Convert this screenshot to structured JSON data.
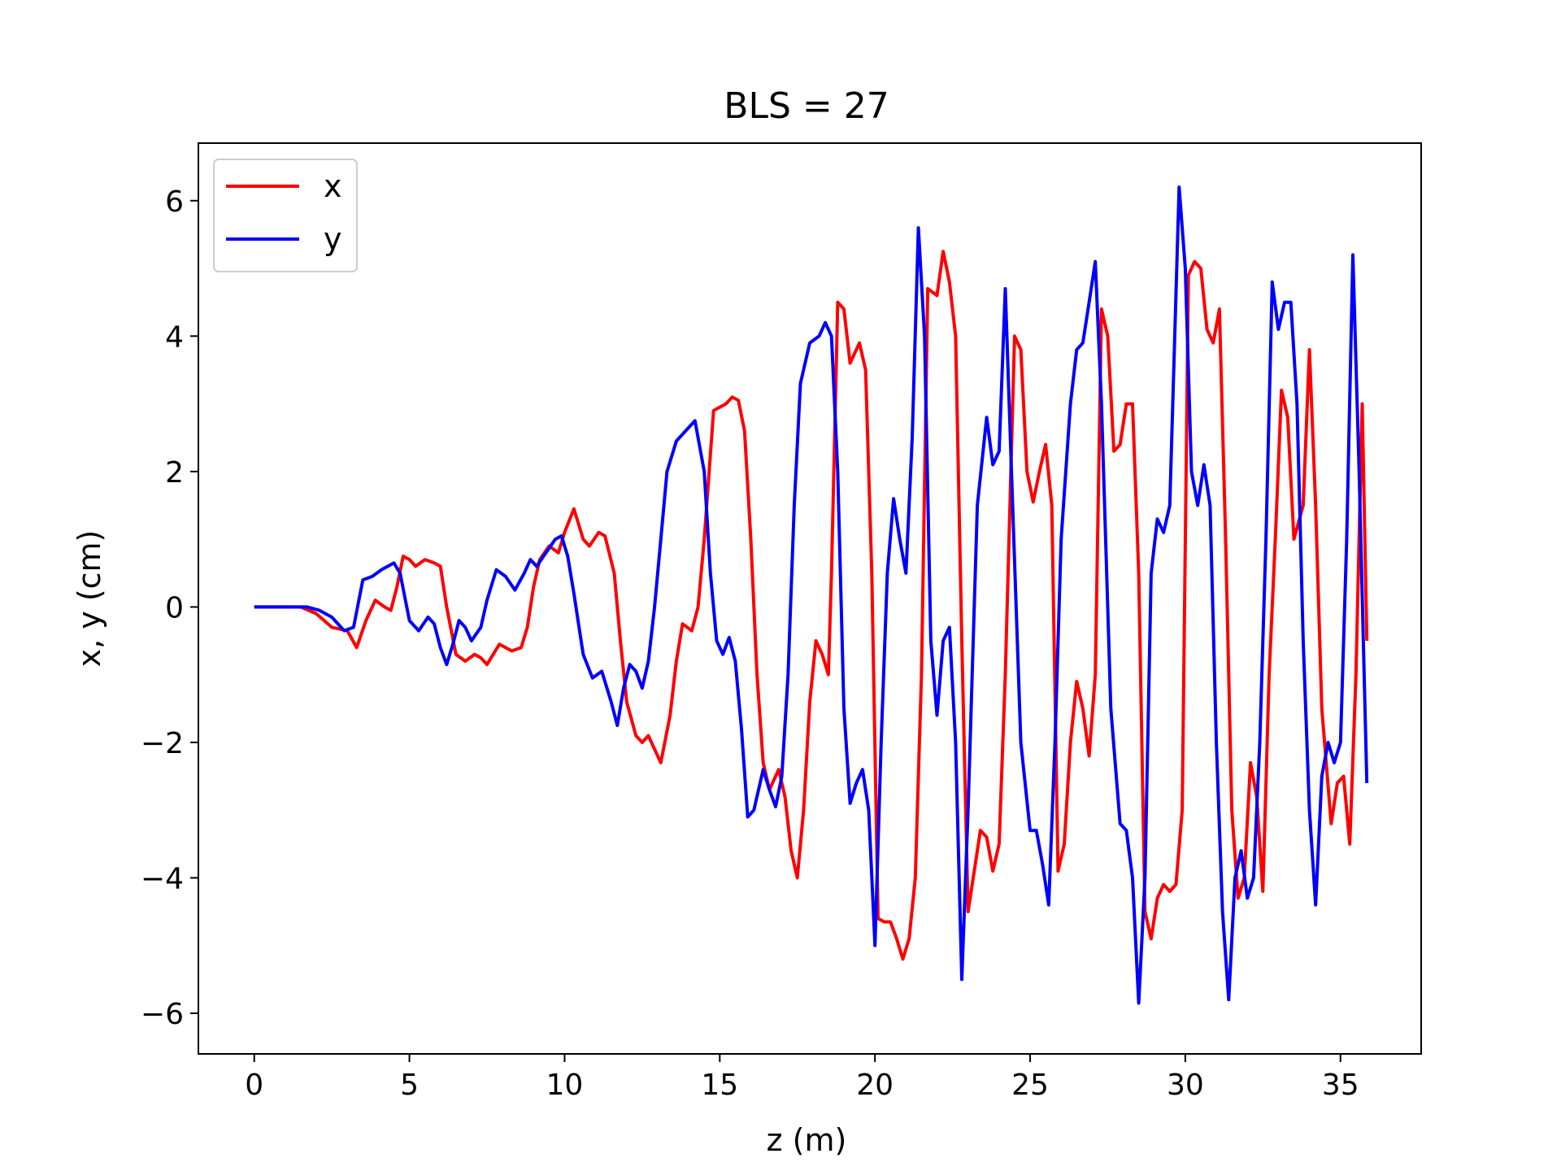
{
  "chart_data": {
    "type": "line",
    "title": "BLS = 27",
    "xlabel": "z (m)",
    "ylabel": "x, y (cm)",
    "xlim": [
      -1.8,
      37.6
    ],
    "ylim": [
      -6.6,
      6.85
    ],
    "xticks": [
      0,
      5,
      10,
      15,
      20,
      25,
      30,
      35
    ],
    "xtick_labels": [
      "0",
      "5",
      "10",
      "15",
      "20",
      "25",
      "30",
      "35"
    ],
    "yticks": [
      -6,
      -4,
      -2,
      0,
      2,
      4,
      6
    ],
    "ytick_labels": [
      "−6",
      "−4",
      "−2",
      "0",
      "2",
      "4",
      "6"
    ],
    "grid": false,
    "legend_position": "upper-left",
    "series": [
      {
        "name": "x",
        "color": "#ff0000",
        "points": [
          [
            0,
            0
          ],
          [
            1.5,
            0
          ],
          [
            2.0,
            -0.1
          ],
          [
            2.5,
            -0.3
          ],
          [
            3.0,
            -0.35
          ],
          [
            3.3,
            -0.6
          ],
          [
            3.6,
            -0.2
          ],
          [
            3.9,
            0.1
          ],
          [
            4.2,
            0.0
          ],
          [
            4.4,
            -0.05
          ],
          [
            4.6,
            0.3
          ],
          [
            4.8,
            0.75
          ],
          [
            5.0,
            0.7
          ],
          [
            5.2,
            0.6
          ],
          [
            5.5,
            0.7
          ],
          [
            5.8,
            0.65
          ],
          [
            6.0,
            0.6
          ],
          [
            6.2,
            0.0
          ],
          [
            6.5,
            -0.7
          ],
          [
            6.8,
            -0.8
          ],
          [
            7.1,
            -0.7
          ],
          [
            7.3,
            -0.75
          ],
          [
            7.5,
            -0.85
          ],
          [
            7.7,
            -0.7
          ],
          [
            7.9,
            -0.55
          ],
          [
            8.1,
            -0.6
          ],
          [
            8.3,
            -0.65
          ],
          [
            8.6,
            -0.6
          ],
          [
            8.8,
            -0.3
          ],
          [
            9.0,
            0.3
          ],
          [
            9.2,
            0.7
          ],
          [
            9.5,
            0.9
          ],
          [
            9.8,
            0.8
          ],
          [
            10.0,
            1.1
          ],
          [
            10.3,
            1.45
          ],
          [
            10.6,
            1.0
          ],
          [
            10.8,
            0.9
          ],
          [
            11.1,
            1.1
          ],
          [
            11.3,
            1.05
          ],
          [
            11.6,
            0.5
          ],
          [
            11.8,
            -0.5
          ],
          [
            12.0,
            -1.4
          ],
          [
            12.3,
            -1.9
          ],
          [
            12.5,
            -2.0
          ],
          [
            12.7,
            -1.9
          ],
          [
            12.9,
            -2.1
          ],
          [
            13.1,
            -2.3
          ],
          [
            13.4,
            -1.6
          ],
          [
            13.6,
            -0.8
          ],
          [
            13.8,
            -0.25
          ],
          [
            14.1,
            -0.35
          ],
          [
            14.3,
            0.0
          ],
          [
            14.5,
            1.0
          ],
          [
            14.8,
            2.9
          ],
          [
            15.0,
            2.95
          ],
          [
            15.2,
            3.0
          ],
          [
            15.4,
            3.1
          ],
          [
            15.6,
            3.05
          ],
          [
            15.8,
            2.6
          ],
          [
            16.0,
            1.0
          ],
          [
            16.2,
            -1.0
          ],
          [
            16.4,
            -2.3
          ],
          [
            16.6,
            -2.7
          ],
          [
            16.9,
            -2.4
          ],
          [
            17.1,
            -2.8
          ],
          [
            17.3,
            -3.6
          ],
          [
            17.5,
            -4.0
          ],
          [
            17.7,
            -3.0
          ],
          [
            17.9,
            -1.4
          ],
          [
            18.1,
            -0.5
          ],
          [
            18.3,
            -0.7
          ],
          [
            18.5,
            -1.0
          ],
          [
            18.6,
            0.5
          ],
          [
            18.8,
            4.5
          ],
          [
            19.0,
            4.4
          ],
          [
            19.2,
            3.6
          ],
          [
            19.5,
            3.9
          ],
          [
            19.7,
            3.5
          ],
          [
            19.9,
            0.5
          ],
          [
            20.1,
            -4.6
          ],
          [
            20.3,
            -4.65
          ],
          [
            20.5,
            -4.65
          ],
          [
            20.7,
            -4.9
          ],
          [
            20.9,
            -5.2
          ],
          [
            21.1,
            -4.9
          ],
          [
            21.3,
            -4.0
          ],
          [
            21.5,
            -1.0
          ],
          [
            21.7,
            4.7
          ],
          [
            22.0,
            4.6
          ],
          [
            22.2,
            5.25
          ],
          [
            22.4,
            4.8
          ],
          [
            22.6,
            4.0
          ],
          [
            22.8,
            -0.5
          ],
          [
            23.0,
            -4.5
          ],
          [
            23.2,
            -3.9
          ],
          [
            23.4,
            -3.3
          ],
          [
            23.6,
            -3.4
          ],
          [
            23.8,
            -3.9
          ],
          [
            24.0,
            -3.5
          ],
          [
            24.2,
            -1.0
          ],
          [
            24.5,
            4.0
          ],
          [
            24.7,
            3.8
          ],
          [
            24.9,
            2.0
          ],
          [
            25.1,
            1.55
          ],
          [
            25.3,
            2.0
          ],
          [
            25.5,
            2.4
          ],
          [
            25.7,
            1.5
          ],
          [
            25.9,
            -3.9
          ],
          [
            26.1,
            -3.5
          ],
          [
            26.3,
            -2.0
          ],
          [
            26.5,
            -1.1
          ],
          [
            26.7,
            -1.5
          ],
          [
            26.9,
            -2.2
          ],
          [
            27.1,
            -1.0
          ],
          [
            27.3,
            4.4
          ],
          [
            27.5,
            4.0
          ],
          [
            27.7,
            2.3
          ],
          [
            27.9,
            2.4
          ],
          [
            28.1,
            3.0
          ],
          [
            28.3,
            3.0
          ],
          [
            28.5,
            0.5
          ],
          [
            28.7,
            -4.5
          ],
          [
            28.9,
            -4.9
          ],
          [
            29.1,
            -4.3
          ],
          [
            29.3,
            -4.1
          ],
          [
            29.5,
            -4.2
          ],
          [
            29.7,
            -4.1
          ],
          [
            29.9,
            -3.0
          ],
          [
            30.1,
            4.9
          ],
          [
            30.3,
            5.1
          ],
          [
            30.5,
            5.0
          ],
          [
            30.7,
            4.1
          ],
          [
            30.9,
            3.9
          ],
          [
            31.1,
            4.4
          ],
          [
            31.3,
            1.0
          ],
          [
            31.5,
            -3.0
          ],
          [
            31.7,
            -4.3
          ],
          [
            31.9,
            -4.0
          ],
          [
            32.1,
            -2.3
          ],
          [
            32.3,
            -2.8
          ],
          [
            32.5,
            -4.2
          ],
          [
            32.7,
            -1.0
          ],
          [
            32.9,
            1.0
          ],
          [
            33.1,
            3.2
          ],
          [
            33.3,
            2.8
          ],
          [
            33.5,
            1.0
          ],
          [
            33.8,
            1.5
          ],
          [
            34.0,
            3.8
          ],
          [
            34.2,
            1.5
          ],
          [
            34.4,
            -1.5
          ],
          [
            34.7,
            -3.2
          ],
          [
            34.9,
            -2.6
          ],
          [
            35.1,
            -2.5
          ],
          [
            35.3,
            -3.5
          ],
          [
            35.5,
            -1.0
          ],
          [
            35.7,
            3.0
          ],
          [
            35.85,
            -0.5
          ]
        ]
      },
      {
        "name": "y",
        "color": "#0000ff",
        "points": [
          [
            0,
            0
          ],
          [
            1.7,
            0
          ],
          [
            2.1,
            -0.05
          ],
          [
            2.5,
            -0.15
          ],
          [
            2.9,
            -0.35
          ],
          [
            3.2,
            -0.3
          ],
          [
            3.5,
            0.4
          ],
          [
            3.8,
            0.45
          ],
          [
            4.1,
            0.55
          ],
          [
            4.5,
            0.65
          ],
          [
            4.7,
            0.5
          ],
          [
            5.0,
            -0.2
          ],
          [
            5.3,
            -0.35
          ],
          [
            5.6,
            -0.15
          ],
          [
            5.8,
            -0.25
          ],
          [
            6.0,
            -0.6
          ],
          [
            6.2,
            -0.85
          ],
          [
            6.4,
            -0.55
          ],
          [
            6.6,
            -0.2
          ],
          [
            6.8,
            -0.3
          ],
          [
            7.0,
            -0.5
          ],
          [
            7.3,
            -0.3
          ],
          [
            7.5,
            0.1
          ],
          [
            7.8,
            0.55
          ],
          [
            8.1,
            0.45
          ],
          [
            8.4,
            0.25
          ],
          [
            8.7,
            0.5
          ],
          [
            8.9,
            0.7
          ],
          [
            9.1,
            0.6
          ],
          [
            9.4,
            0.8
          ],
          [
            9.7,
            1.0
          ],
          [
            9.9,
            1.05
          ],
          [
            10.1,
            0.75
          ],
          [
            10.3,
            0.2
          ],
          [
            10.6,
            -0.7
          ],
          [
            10.9,
            -1.05
          ],
          [
            11.2,
            -0.95
          ],
          [
            11.5,
            -1.4
          ],
          [
            11.7,
            -1.75
          ],
          [
            11.9,
            -1.2
          ],
          [
            12.1,
            -0.85
          ],
          [
            12.3,
            -0.95
          ],
          [
            12.5,
            -1.2
          ],
          [
            12.7,
            -0.8
          ],
          [
            12.9,
            0.0
          ],
          [
            13.1,
            1.0
          ],
          [
            13.3,
            2.0
          ],
          [
            13.6,
            2.45
          ],
          [
            13.9,
            2.6
          ],
          [
            14.2,
            2.75
          ],
          [
            14.5,
            2.0
          ],
          [
            14.7,
            0.5
          ],
          [
            14.9,
            -0.5
          ],
          [
            15.1,
            -0.7
          ],
          [
            15.3,
            -0.45
          ],
          [
            15.5,
            -0.8
          ],
          [
            15.7,
            -1.8
          ],
          [
            15.9,
            -3.1
          ],
          [
            16.1,
            -3.0
          ],
          [
            16.4,
            -2.4
          ],
          [
            16.6,
            -2.7
          ],
          [
            16.8,
            -2.95
          ],
          [
            17.0,
            -2.5
          ],
          [
            17.2,
            -1.0
          ],
          [
            17.4,
            1.5
          ],
          [
            17.6,
            3.3
          ],
          [
            17.9,
            3.9
          ],
          [
            18.2,
            4.0
          ],
          [
            18.4,
            4.2
          ],
          [
            18.6,
            4.0
          ],
          [
            18.8,
            2.0
          ],
          [
            19.0,
            -1.5
          ],
          [
            19.2,
            -2.9
          ],
          [
            19.4,
            -2.6
          ],
          [
            19.6,
            -2.4
          ],
          [
            19.8,
            -3.0
          ],
          [
            20.0,
            -5.0
          ],
          [
            20.2,
            -2.0
          ],
          [
            20.4,
            0.5
          ],
          [
            20.6,
            1.6
          ],
          [
            20.8,
            1.0
          ],
          [
            21.0,
            0.5
          ],
          [
            21.2,
            2.5
          ],
          [
            21.4,
            5.6
          ],
          [
            21.6,
            4.0
          ],
          [
            21.8,
            -0.5
          ],
          [
            22.0,
            -1.6
          ],
          [
            22.2,
            -0.5
          ],
          [
            22.4,
            -0.3
          ],
          [
            22.6,
            -2.0
          ],
          [
            22.8,
            -5.5
          ],
          [
            23.0,
            -3.0
          ],
          [
            23.3,
            1.5
          ],
          [
            23.6,
            2.8
          ],
          [
            23.8,
            2.1
          ],
          [
            24.0,
            2.3
          ],
          [
            24.2,
            4.7
          ],
          [
            24.4,
            2.0
          ],
          [
            24.7,
            -2.0
          ],
          [
            25.0,
            -3.3
          ],
          [
            25.2,
            -3.3
          ],
          [
            25.4,
            -3.8
          ],
          [
            25.6,
            -4.4
          ],
          [
            25.8,
            -2.0
          ],
          [
            26.0,
            1.0
          ],
          [
            26.3,
            3.0
          ],
          [
            26.5,
            3.8
          ],
          [
            26.7,
            3.9
          ],
          [
            26.9,
            4.5
          ],
          [
            27.1,
            5.1
          ],
          [
            27.3,
            3.0
          ],
          [
            27.6,
            -1.5
          ],
          [
            27.9,
            -3.2
          ],
          [
            28.1,
            -3.3
          ],
          [
            28.3,
            -4.0
          ],
          [
            28.5,
            -5.85
          ],
          [
            28.7,
            -4.0
          ],
          [
            28.9,
            0.5
          ],
          [
            29.1,
            1.3
          ],
          [
            29.3,
            1.1
          ],
          [
            29.5,
            1.5
          ],
          [
            29.8,
            6.2
          ],
          [
            30.0,
            5.0
          ],
          [
            30.2,
            2.0
          ],
          [
            30.4,
            1.5
          ],
          [
            30.6,
            2.1
          ],
          [
            30.8,
            1.5
          ],
          [
            31.0,
            -2.0
          ],
          [
            31.2,
            -4.5
          ],
          [
            31.4,
            -5.8
          ],
          [
            31.6,
            -4.0
          ],
          [
            31.8,
            -3.6
          ],
          [
            32.0,
            -4.3
          ],
          [
            32.2,
            -4.0
          ],
          [
            32.4,
            -2.0
          ],
          [
            32.6,
            1.0
          ],
          [
            32.8,
            4.8
          ],
          [
            33.0,
            4.1
          ],
          [
            33.2,
            4.5
          ],
          [
            33.4,
            4.5
          ],
          [
            33.6,
            3.0
          ],
          [
            33.8,
            -0.5
          ],
          [
            34.0,
            -3.0
          ],
          [
            34.2,
            -4.4
          ],
          [
            34.4,
            -2.5
          ],
          [
            34.6,
            -2.0
          ],
          [
            34.8,
            -2.3
          ],
          [
            35.0,
            -2.0
          ],
          [
            35.2,
            1.0
          ],
          [
            35.4,
            5.2
          ],
          [
            35.6,
            2.0
          ],
          [
            35.85,
            -2.6
          ]
        ]
      }
    ]
  }
}
